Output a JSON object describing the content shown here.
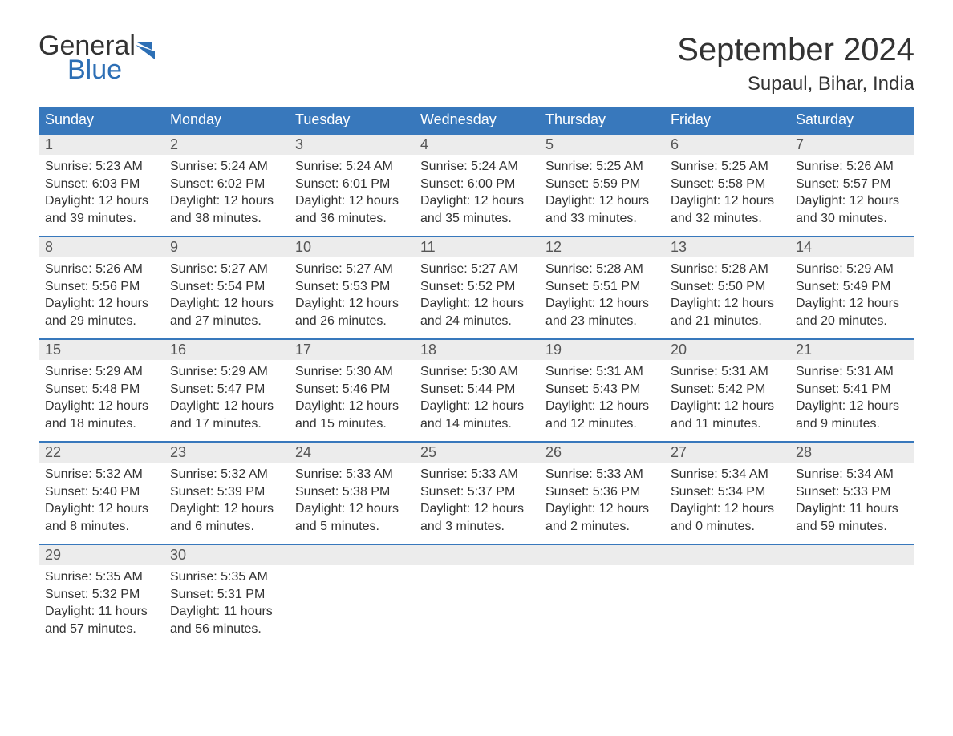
{
  "logo": {
    "general": "General",
    "blue": "Blue",
    "accent_color": "#2d6fb5"
  },
  "title": "September 2024",
  "location": "Supaul, Bihar, India",
  "colors": {
    "header_bg": "#3878bc",
    "header_text": "#ffffff",
    "day_header_bg": "#ececec",
    "day_header_border": "#3878bc",
    "body_text": "#333333",
    "day_number_text": "#555555",
    "background": "#ffffff"
  },
  "typography": {
    "month_title_fontsize": 40,
    "location_fontsize": 24,
    "weekday_fontsize": 18,
    "daynum_fontsize": 18,
    "content_fontsize": 16,
    "font_family": "Arial"
  },
  "weekdays": [
    "Sunday",
    "Monday",
    "Tuesday",
    "Wednesday",
    "Thursday",
    "Friday",
    "Saturday"
  ],
  "labels": {
    "sunrise": "Sunrise:",
    "sunset": "Sunset:",
    "daylight": "Daylight:"
  },
  "weeks": [
    [
      {
        "day": "1",
        "sunrise": "5:23 AM",
        "sunset": "6:03 PM",
        "daylight": "12 hours and 39 minutes."
      },
      {
        "day": "2",
        "sunrise": "5:24 AM",
        "sunset": "6:02 PM",
        "daylight": "12 hours and 38 minutes."
      },
      {
        "day": "3",
        "sunrise": "5:24 AM",
        "sunset": "6:01 PM",
        "daylight": "12 hours and 36 minutes."
      },
      {
        "day": "4",
        "sunrise": "5:24 AM",
        "sunset": "6:00 PM",
        "daylight": "12 hours and 35 minutes."
      },
      {
        "day": "5",
        "sunrise": "5:25 AM",
        "sunset": "5:59 PM",
        "daylight": "12 hours and 33 minutes."
      },
      {
        "day": "6",
        "sunrise": "5:25 AM",
        "sunset": "5:58 PM",
        "daylight": "12 hours and 32 minutes."
      },
      {
        "day": "7",
        "sunrise": "5:26 AM",
        "sunset": "5:57 PM",
        "daylight": "12 hours and 30 minutes."
      }
    ],
    [
      {
        "day": "8",
        "sunrise": "5:26 AM",
        "sunset": "5:56 PM",
        "daylight": "12 hours and 29 minutes."
      },
      {
        "day": "9",
        "sunrise": "5:27 AM",
        "sunset": "5:54 PM",
        "daylight": "12 hours and 27 minutes."
      },
      {
        "day": "10",
        "sunrise": "5:27 AM",
        "sunset": "5:53 PM",
        "daylight": "12 hours and 26 minutes."
      },
      {
        "day": "11",
        "sunrise": "5:27 AM",
        "sunset": "5:52 PM",
        "daylight": "12 hours and 24 minutes."
      },
      {
        "day": "12",
        "sunrise": "5:28 AM",
        "sunset": "5:51 PM",
        "daylight": "12 hours and 23 minutes."
      },
      {
        "day": "13",
        "sunrise": "5:28 AM",
        "sunset": "5:50 PM",
        "daylight": "12 hours and 21 minutes."
      },
      {
        "day": "14",
        "sunrise": "5:29 AM",
        "sunset": "5:49 PM",
        "daylight": "12 hours and 20 minutes."
      }
    ],
    [
      {
        "day": "15",
        "sunrise": "5:29 AM",
        "sunset": "5:48 PM",
        "daylight": "12 hours and 18 minutes."
      },
      {
        "day": "16",
        "sunrise": "5:29 AM",
        "sunset": "5:47 PM",
        "daylight": "12 hours and 17 minutes."
      },
      {
        "day": "17",
        "sunrise": "5:30 AM",
        "sunset": "5:46 PM",
        "daylight": "12 hours and 15 minutes."
      },
      {
        "day": "18",
        "sunrise": "5:30 AM",
        "sunset": "5:44 PM",
        "daylight": "12 hours and 14 minutes."
      },
      {
        "day": "19",
        "sunrise": "5:31 AM",
        "sunset": "5:43 PM",
        "daylight": "12 hours and 12 minutes."
      },
      {
        "day": "20",
        "sunrise": "5:31 AM",
        "sunset": "5:42 PM",
        "daylight": "12 hours and 11 minutes."
      },
      {
        "day": "21",
        "sunrise": "5:31 AM",
        "sunset": "5:41 PM",
        "daylight": "12 hours and 9 minutes."
      }
    ],
    [
      {
        "day": "22",
        "sunrise": "5:32 AM",
        "sunset": "5:40 PM",
        "daylight": "12 hours and 8 minutes."
      },
      {
        "day": "23",
        "sunrise": "5:32 AM",
        "sunset": "5:39 PM",
        "daylight": "12 hours and 6 minutes."
      },
      {
        "day": "24",
        "sunrise": "5:33 AM",
        "sunset": "5:38 PM",
        "daylight": "12 hours and 5 minutes."
      },
      {
        "day": "25",
        "sunrise": "5:33 AM",
        "sunset": "5:37 PM",
        "daylight": "12 hours and 3 minutes."
      },
      {
        "day": "26",
        "sunrise": "5:33 AM",
        "sunset": "5:36 PM",
        "daylight": "12 hours and 2 minutes."
      },
      {
        "day": "27",
        "sunrise": "5:34 AM",
        "sunset": "5:34 PM",
        "daylight": "12 hours and 0 minutes."
      },
      {
        "day": "28",
        "sunrise": "5:34 AM",
        "sunset": "5:33 PM",
        "daylight": "11 hours and 59 minutes."
      }
    ],
    [
      {
        "day": "29",
        "sunrise": "5:35 AM",
        "sunset": "5:32 PM",
        "daylight": "11 hours and 57 minutes."
      },
      {
        "day": "30",
        "sunrise": "5:35 AM",
        "sunset": "5:31 PM",
        "daylight": "11 hours and 56 minutes."
      },
      {
        "empty": true
      },
      {
        "empty": true
      },
      {
        "empty": true
      },
      {
        "empty": true
      },
      {
        "empty": true
      }
    ]
  ]
}
